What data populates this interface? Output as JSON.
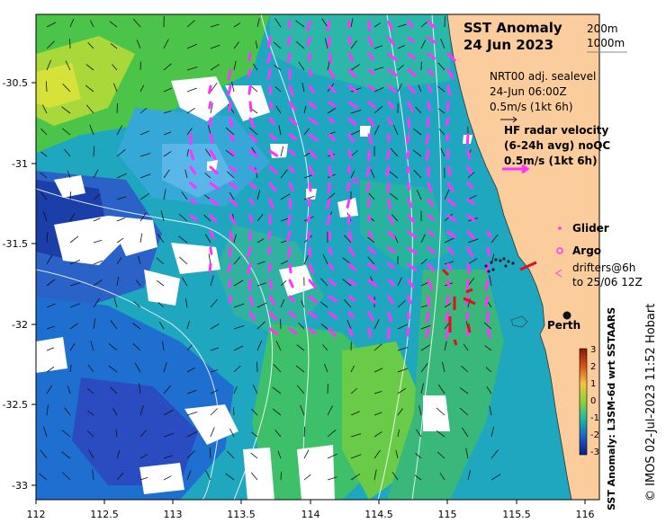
{
  "title": {
    "line1": "SST Anomaly",
    "line2": "24 Jun 2023"
  },
  "depth_contours": [
    "200m",
    "1000m"
  ],
  "sealevel_legend": {
    "line1": "NRT00 adj. sealevel",
    "line2": "24-Jun 06:00Z",
    "line3": "0.5m/s (1kt 6h)"
  },
  "radar_legend": {
    "line1": "HF radar velocity",
    "line2": "(6-24h avg) noQC",
    "line3": "0.5m/s (1kt 6h)"
  },
  "point_legend": {
    "glider": "Glider",
    "argo": "Argo",
    "drifters_line1": "drifters@6h",
    "drifters_line2": "to 25/06 12Z"
  },
  "city": "Perth",
  "colorbar": {
    "label": "SST Anomaly: L3SM-6d wrt SSTAARS",
    "ticks": [
      "3",
      "2",
      "1",
      "0",
      "-1",
      "-2",
      "-3"
    ],
    "colors": [
      "#8b1a06",
      "#d9541a",
      "#f5c542",
      "#8ed13a",
      "#18b6a8",
      "#1a62c8",
      "#0c1c8a"
    ]
  },
  "credit": "© IMOS 02-Jul-2023 11:52 Hobart",
  "axes": {
    "x_ticks": [
      "112",
      "112.5",
      "113",
      "113.5",
      "114",
      "114.5",
      "115",
      "115.5",
      "116"
    ],
    "y_ticks": [
      "-30.5",
      "-31",
      "-31.5",
      "-32",
      "-32.5",
      "-33"
    ],
    "x_range": [
      112,
      116.2
    ],
    "y_range": [
      -33.1,
      -30.1
    ]
  },
  "colors": {
    "land": "#fbcc9c",
    "radar": "#ff33ff",
    "drifter": "#e0101a",
    "white_gaps": "#ffffff"
  }
}
